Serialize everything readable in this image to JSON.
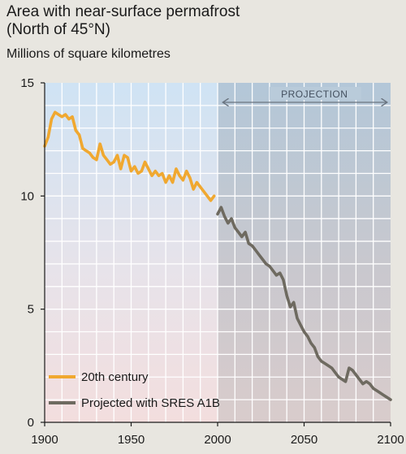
{
  "header": {
    "title_line1": "Area with near-surface permafrost",
    "title_line2": "(North of 45°N)",
    "unit_label": "Millions of square kilometres"
  },
  "chart_data": {
    "type": "line",
    "title": "Area with near-surface permafrost (North of 45°N)",
    "ylabel": "Millions of square kilometres",
    "xlim": [
      1900,
      2100
    ],
    "ylim": [
      0,
      15
    ],
    "x_ticks": [
      1900,
      1950,
      2000,
      2050,
      2100
    ],
    "y_ticks": [
      0,
      5,
      10,
      15
    ],
    "grid": true,
    "annotation": "PROJECTION",
    "legend_position": "bottom-left",
    "series": [
      {
        "name": "20th century",
        "color": "#f0a830",
        "x": [
          1900,
          1902,
          1904,
          1906,
          1908,
          1910,
          1912,
          1914,
          1916,
          1918,
          1920,
          1922,
          1924,
          1926,
          1928,
          1930,
          1932,
          1934,
          1936,
          1938,
          1940,
          1942,
          1944,
          1946,
          1948,
          1950,
          1952,
          1954,
          1956,
          1958,
          1960,
          1962,
          1964,
          1966,
          1968,
          1970,
          1972,
          1974,
          1976,
          1978,
          1980,
          1982,
          1984,
          1986,
          1988,
          1990,
          1992,
          1994,
          1996,
          1998
        ],
        "y": [
          12.2,
          12.6,
          13.4,
          13.7,
          13.6,
          13.5,
          13.6,
          13.4,
          13.5,
          12.9,
          12.7,
          12.1,
          12.0,
          11.9,
          11.7,
          11.6,
          12.3,
          11.8,
          11.6,
          11.4,
          11.5,
          11.8,
          11.2,
          11.8,
          11.7,
          11.1,
          11.3,
          11.0,
          11.1,
          11.5,
          11.2,
          10.9,
          11.1,
          10.9,
          11.0,
          10.6,
          10.9,
          10.6,
          11.2,
          10.9,
          10.7,
          11.1,
          10.8,
          10.3,
          10.6,
          10.4,
          10.2,
          10.0,
          9.8,
          10.0
        ]
      },
      {
        "name": "Projected with SRES A1B",
        "color": "#6e6a60",
        "x": [
          2000,
          2002,
          2004,
          2006,
          2008,
          2010,
          2012,
          2014,
          2016,
          2018,
          2020,
          2022,
          2024,
          2026,
          2028,
          2030,
          2032,
          2034,
          2036,
          2038,
          2040,
          2042,
          2044,
          2046,
          2048,
          2050,
          2052,
          2054,
          2056,
          2058,
          2060,
          2062,
          2064,
          2066,
          2068,
          2070,
          2072,
          2074,
          2076,
          2078,
          2080,
          2082,
          2084,
          2086,
          2088,
          2090,
          2092,
          2094,
          2096,
          2098,
          2100
        ],
        "y": [
          9.2,
          9.5,
          9.1,
          8.8,
          9.0,
          8.6,
          8.4,
          8.2,
          8.4,
          7.9,
          7.8,
          7.6,
          7.4,
          7.2,
          7.0,
          6.9,
          6.7,
          6.5,
          6.6,
          6.3,
          5.6,
          5.1,
          5.3,
          4.6,
          4.3,
          4.0,
          3.8,
          3.5,
          3.3,
          2.9,
          2.7,
          2.6,
          2.5,
          2.4,
          2.2,
          2.0,
          1.9,
          1.8,
          2.4,
          2.3,
          2.1,
          1.9,
          1.7,
          1.8,
          1.7,
          1.5,
          1.4,
          1.3,
          1.2,
          1.1,
          1.0
        ]
      }
    ]
  }
}
